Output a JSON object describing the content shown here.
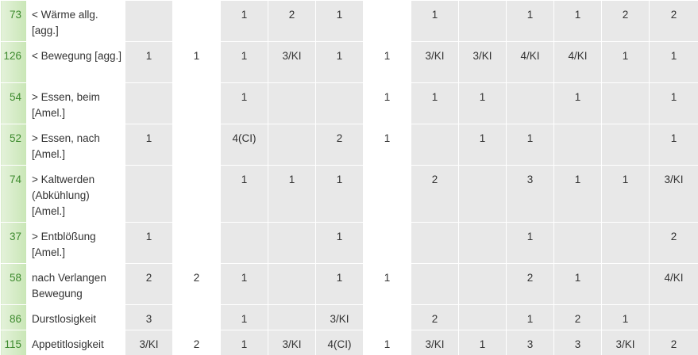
{
  "table": {
    "rows": [
      {
        "count": 73,
        "label": "< Wärme allg. [agg.]",
        "cells": [
          null,
          null,
          1,
          2,
          1,
          null,
          1,
          null,
          1,
          1,
          2,
          2
        ]
      },
      {
        "count": 126,
        "label": "< Bewegung [agg.]",
        "cells": [
          1,
          1,
          1,
          "3/KI",
          1,
          1,
          "3/KI",
          "3/KI",
          "4/KI",
          "4/KI",
          1,
          1
        ]
      },
      {
        "count": 54,
        "label": "> Essen, beim [Amel.]",
        "cells": [
          null,
          null,
          1,
          null,
          null,
          1,
          1,
          1,
          null,
          1,
          null,
          1
        ]
      },
      {
        "count": 52,
        "label": "> Essen, nach [Amel.]",
        "cells": [
          1,
          null,
          "4(CI)",
          null,
          2,
          1,
          null,
          1,
          1,
          null,
          null,
          1
        ]
      },
      {
        "count": 74,
        "label": "> Kaltwerden (Abkühlung) [Amel.]",
        "cells": [
          null,
          null,
          1,
          1,
          1,
          null,
          2,
          null,
          3,
          1,
          1,
          "3/KI"
        ]
      },
      {
        "count": 37,
        "label": "> Entblößung [Amel.]",
        "cells": [
          1,
          null,
          null,
          null,
          1,
          null,
          null,
          null,
          1,
          null,
          null,
          2
        ]
      },
      {
        "count": 58,
        "label": "nach Verlangen Bewegung",
        "cells": [
          2,
          2,
          1,
          null,
          1,
          1,
          null,
          null,
          2,
          1,
          null,
          "4/KI"
        ]
      },
      {
        "count": 86,
        "label": "Durstlosigkeit",
        "cells": [
          3,
          null,
          1,
          null,
          "3/KI",
          null,
          2,
          null,
          1,
          2,
          1,
          null
        ]
      },
      {
        "count": 115,
        "label": "Appetitlosigkeit",
        "cells": [
          "3/KI",
          2,
          1,
          "3/KI",
          "4(CI)",
          1,
          "3/KI",
          1,
          3,
          3,
          "3/KI",
          2
        ]
      }
    ]
  }
}
